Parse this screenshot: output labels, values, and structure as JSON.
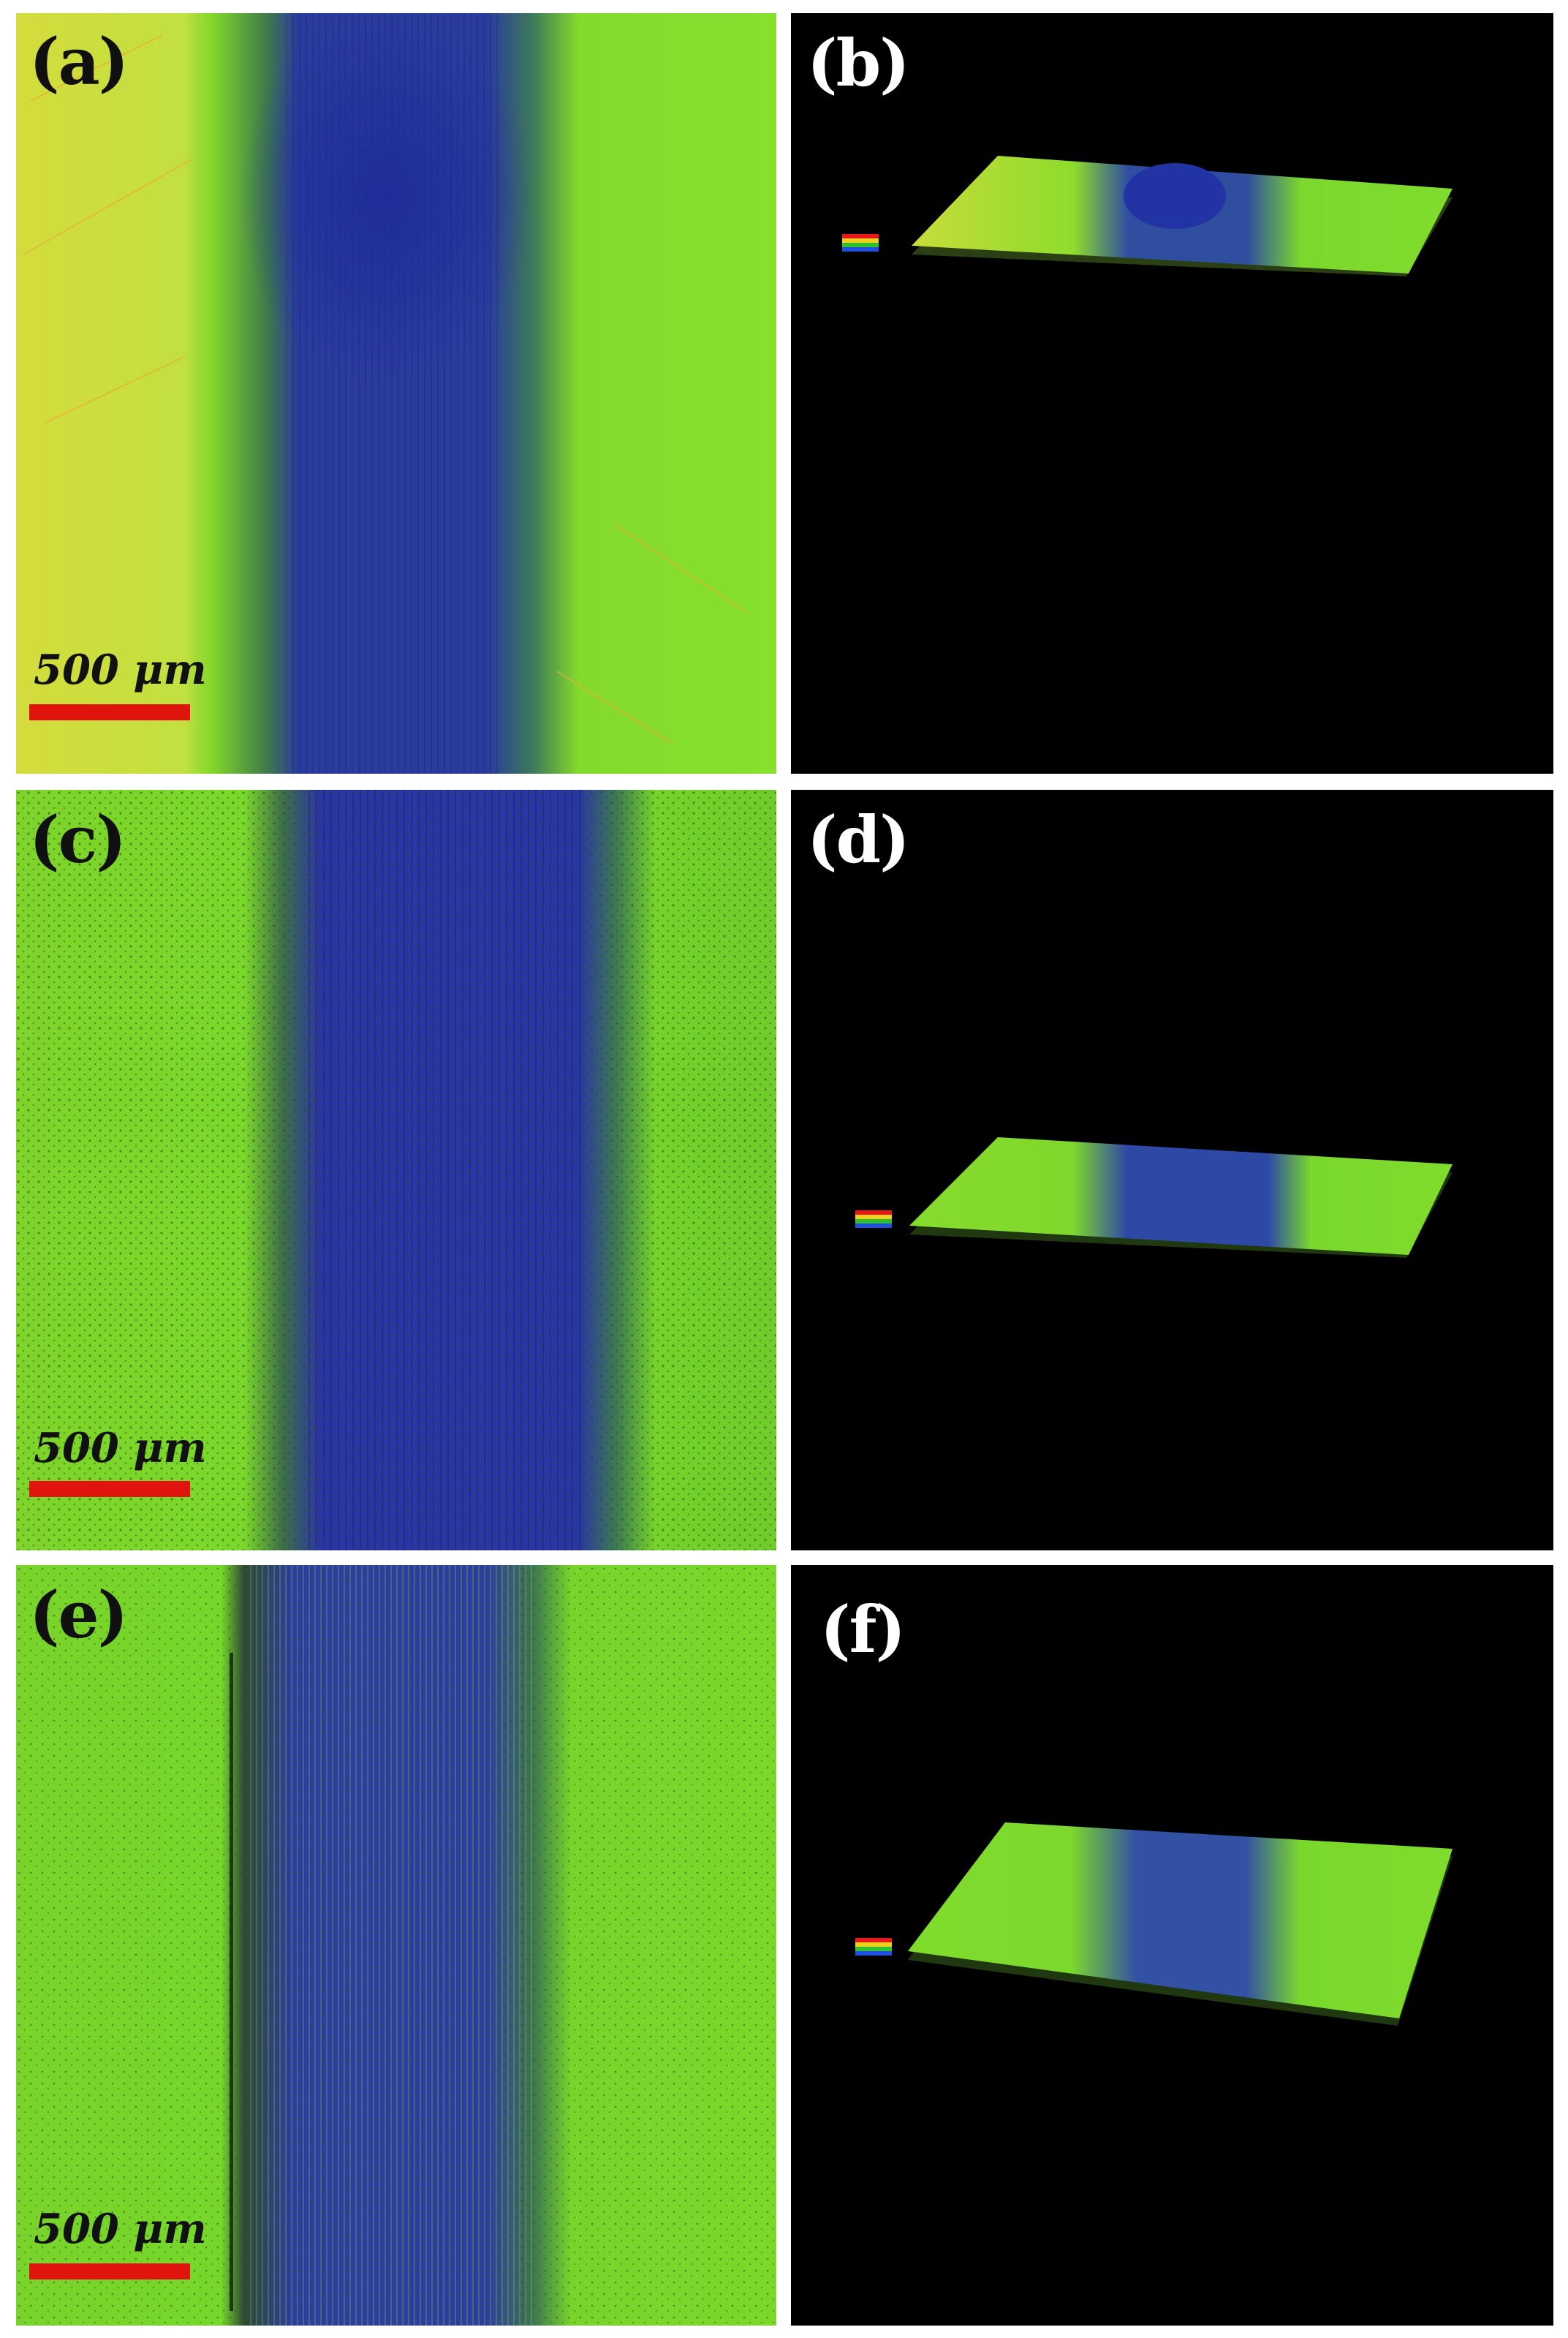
{
  "panels": {
    "a": {
      "label": "(a)",
      "scale_text": "500 μm"
    },
    "b": {
      "label": "(b)"
    },
    "c": {
      "label": "(c)",
      "scale_text": "500 μm"
    },
    "d": {
      "label": "(d)"
    },
    "e": {
      "label": "(e)",
      "scale_text": "500 μm"
    },
    "f": {
      "label": "(f)"
    }
  },
  "colors": {
    "surface_green": "#6ed928",
    "surface_yellow": "#c8e040",
    "wear_track_blue": "#2a3aa8",
    "background_black": "#000000",
    "scale_bar_red": "#e0140c"
  }
}
